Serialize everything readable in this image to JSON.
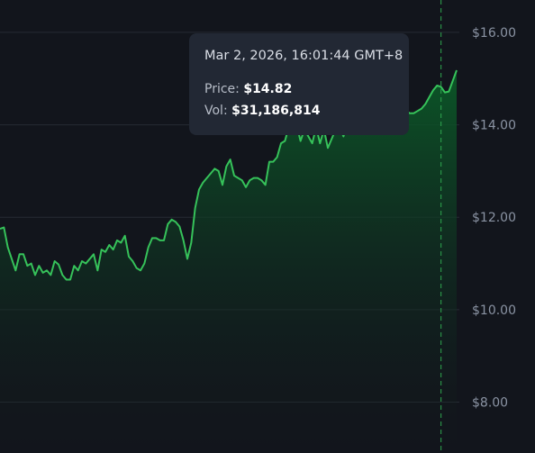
{
  "tooltip": {
    "date": "Mar 2, 2026, 16:01:44 GMT+8",
    "price_label": "Price:",
    "price_value": "$14.82",
    "vol_label": "Vol:",
    "vol_value": "$31,186,814"
  },
  "colors": {
    "background": "#12151c",
    "grid": "#262b33",
    "line": "#36c25a",
    "fill_top": "#0b4a22",
    "crosshair": "#2fa84f",
    "tooltip_bg": "#222834",
    "tick_text": "#8a93a3"
  },
  "chart_data": {
    "type": "area",
    "ylim": [
      6.9,
      16.7
    ],
    "y_ticks": [
      8,
      10,
      12,
      14,
      16
    ],
    "y_tick_labels": [
      "$8.00",
      "$10.00",
      "$12.00",
      "$14.00",
      "$16.00"
    ],
    "y_axis_position": "right",
    "grid": true,
    "crosshair_index": 113,
    "series": [
      {
        "values": [
          11.75,
          11.78,
          11.35,
          11.1,
          10.85,
          11.2,
          11.2,
          10.95,
          11.0,
          10.75,
          10.95,
          10.8,
          10.85,
          10.75,
          11.05,
          10.98,
          10.75,
          10.65,
          10.65,
          10.95,
          10.85,
          11.05,
          11.0,
          11.1,
          11.2,
          10.85,
          11.3,
          11.25,
          11.4,
          11.3,
          11.5,
          11.45,
          11.6,
          11.15,
          11.05,
          10.9,
          10.85,
          11.0,
          11.35,
          11.55,
          11.55,
          11.5,
          11.5,
          11.85,
          11.95,
          11.9,
          11.8,
          11.5,
          11.1,
          11.45,
          12.2,
          12.6,
          12.75,
          12.85,
          12.95,
          13.05,
          13.0,
          12.7,
          13.1,
          13.25,
          12.9,
          12.85,
          12.8,
          12.65,
          12.8,
          12.85,
          12.85,
          12.8,
          12.7,
          13.2,
          13.2,
          13.3,
          13.6,
          13.65,
          13.95,
          13.8,
          14.0,
          13.65,
          13.9,
          13.75,
          13.6,
          13.95,
          13.6,
          13.9,
          13.5,
          13.7,
          13.9,
          13.95,
          13.75,
          14.0,
          13.9,
          14.1,
          14.15,
          14.0,
          14.2,
          14.35,
          14.3,
          14.35,
          14.3,
          14.25,
          14.3,
          14.35,
          14.3,
          14.3,
          14.3,
          14.25,
          14.25,
          14.3,
          14.35,
          14.45,
          14.6,
          14.75,
          14.85,
          14.82,
          14.7,
          14.72,
          14.95,
          15.18
        ]
      }
    ]
  }
}
